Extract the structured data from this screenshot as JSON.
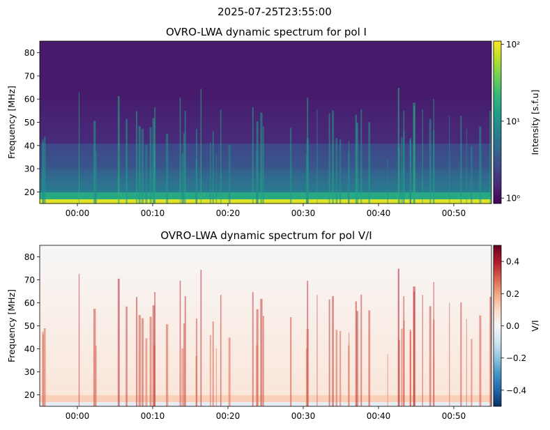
{
  "figure": {
    "suptitle": "2025-07-25T23:55:00"
  },
  "chart_data": [
    {
      "type": "heatmap",
      "title": "OVRO-LWA dynamic spectrum for pol I",
      "xlabel": "",
      "ylabel": "Frequency [MHz]",
      "x_ticklabels": [
        "00:00",
        "00:10",
        "00:20",
        "00:30",
        "00:40",
        "00:50"
      ],
      "x_tick_minutes": [
        5,
        15,
        25,
        35,
        45,
        55
      ],
      "x_range_minutes_from_2355": [
        0,
        60
      ],
      "y_ticks": [
        20,
        30,
        40,
        50,
        60,
        70,
        80
      ],
      "ylim": [
        15,
        85
      ],
      "colorscale": "viridis",
      "log_scale": true,
      "colorbar": {
        "label": "Intensity [s.f.u]",
        "range": [
          0.85,
          110
        ],
        "ticks": [
          {
            "value": 1,
            "label": "10⁰"
          },
          {
            "value": 10,
            "label": "10¹"
          },
          {
            "value": 100,
            "label": "10²"
          }
        ]
      },
      "colors": [
        "#440154",
        "#482878",
        "#3e4989",
        "#31688e",
        "#26828e",
        "#1f9e89",
        "#35b779",
        "#6ece58",
        "#b5de2b",
        "#fde725"
      ]
    },
    {
      "type": "heatmap",
      "title": "OVRO-LWA dynamic spectrum for pol V/I",
      "xlabel": "",
      "ylabel": "Frequency [MHz]",
      "x_ticklabels": [
        "00:00",
        "00:10",
        "00:20",
        "00:30",
        "00:40",
        "00:50"
      ],
      "x_tick_minutes": [
        5,
        15,
        25,
        35,
        45,
        55
      ],
      "x_range_minutes_from_2355": [
        0,
        60
      ],
      "y_ticks": [
        20,
        30,
        40,
        50,
        60,
        70,
        80
      ],
      "ylim": [
        15,
        85
      ],
      "colorscale": "RdBu_r",
      "log_scale": false,
      "colorbar": {
        "label": "V/I",
        "range": [
          -0.5,
          0.5
        ],
        "ticks": [
          {
            "value": 0.4,
            "label": "0.4"
          },
          {
            "value": 0.2,
            "label": "0.2"
          },
          {
            "value": 0.0,
            "label": "0.0"
          },
          {
            "value": -0.2,
            "label": "−0.2"
          },
          {
            "value": -0.4,
            "label": "−0.4"
          }
        ]
      },
      "colors": [
        "#053061",
        "#2166ac",
        "#4393c3",
        "#92c5de",
        "#d1e5f0",
        "#f7f7f7",
        "#fddbc7",
        "#f4a582",
        "#d6604d",
        "#b2182b",
        "#67001f"
      ]
    }
  ]
}
